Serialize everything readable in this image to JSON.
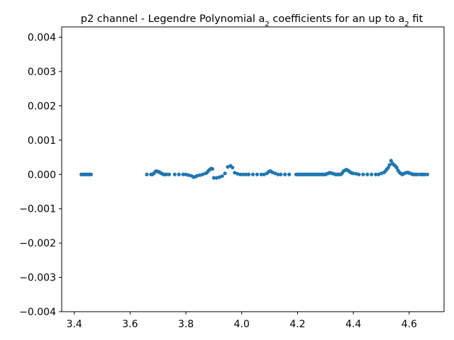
{
  "chart_data": {
    "type": "scatter",
    "title": "p2 channel - Legendre Polynomial a",
    "title_sub1": "2",
    "title_mid": " coefficients for an up to a",
    "title_sub2": "2",
    "title_end": " fit",
    "xlabel": "",
    "ylabel": "",
    "xlim": [
      3.355,
      4.725
    ],
    "ylim": [
      -0.004,
      0.0043
    ],
    "x_ticks": [
      3.4,
      3.6,
      3.8,
      4.0,
      4.2,
      4.4,
      4.6
    ],
    "x_tick_labels": [
      "3.4",
      "3.6",
      "3.8",
      "4.0",
      "4.2",
      "4.4",
      "4.6"
    ],
    "y_ticks": [
      -0.004,
      -0.003,
      -0.002,
      -0.001,
      0.0,
      0.001,
      0.002,
      0.003,
      0.004
    ],
    "y_tick_labels": [
      "−0.004",
      "−0.003",
      "−0.002",
      "−0.001",
      "0.000",
      "0.001",
      "0.002",
      "0.003",
      "0.004"
    ],
    "grid": false,
    "marker_color": "#1f77b4",
    "series": [
      {
        "points": [
          [
            3.425,
            0.0
          ],
          [
            3.43,
            0.0
          ],
          [
            3.435,
            0.0
          ],
          [
            3.44,
            0.0
          ],
          [
            3.445,
            0.0
          ],
          [
            3.45,
            0.0
          ],
          [
            3.455,
            0.0
          ],
          [
            3.46,
            0.0
          ],
          [
            3.66,
            0.0
          ],
          [
            3.675,
            0.0
          ],
          [
            3.68,
            0.0
          ],
          [
            3.685,
            3e-05
          ],
          [
            3.69,
            8e-05
          ],
          [
            3.695,
            0.0001
          ],
          [
            3.7,
            8e-05
          ],
          [
            3.705,
            7e-05
          ],
          [
            3.71,
            4e-05
          ],
          [
            3.715,
            2e-05
          ],
          [
            3.72,
            0.0
          ],
          [
            3.725,
            0.0
          ],
          [
            3.73,
            0.0
          ],
          [
            3.74,
            0.0
          ],
          [
            3.76,
            0.0
          ],
          [
            3.775,
            0.0
          ],
          [
            3.79,
            0.0
          ],
          [
            3.8,
            0.0
          ],
          [
            3.81,
            -2e-05
          ],
          [
            3.82,
            -4e-05
          ],
          [
            3.828,
            -8e-05
          ],
          [
            3.835,
            -6e-05
          ],
          [
            3.84,
            -4e-05
          ],
          [
            3.85,
            -2e-05
          ],
          [
            3.86,
            0.0
          ],
          [
            3.87,
            3e-05
          ],
          [
            3.875,
            5e-05
          ],
          [
            3.88,
            0.0001
          ],
          [
            3.885,
            0.00014
          ],
          [
            3.89,
            0.00017
          ],
          [
            3.895,
            0.00016
          ],
          [
            3.9,
            -0.0001
          ],
          [
            3.91,
            -0.0001
          ],
          [
            3.92,
            -8e-05
          ],
          [
            3.93,
            -5e-05
          ],
          [
            3.94,
            3e-05
          ],
          [
            3.95,
            0.00022
          ],
          [
            3.96,
            0.00025
          ],
          [
            3.967,
            0.0002
          ],
          [
            3.975,
            5e-05
          ],
          [
            3.985,
            2e-05
          ],
          [
            3.995,
            0.0
          ],
          [
            4.005,
            0.0
          ],
          [
            4.015,
            0.0
          ],
          [
            4.025,
            0.0
          ],
          [
            4.04,
            0.0
          ],
          [
            4.055,
            0.0
          ],
          [
            4.07,
            0.0
          ],
          [
            4.08,
            0.0
          ],
          [
            4.09,
            3e-05
          ],
          [
            4.097,
            8e-05
          ],
          [
            4.103,
            0.0001
          ],
          [
            4.11,
            6e-05
          ],
          [
            4.12,
            3e-05
          ],
          [
            4.13,
            0.0
          ],
          [
            4.14,
            0.0
          ],
          [
            4.155,
            0.0
          ],
          [
            4.17,
            0.0
          ],
          [
            4.195,
            0.0
          ],
          [
            4.2,
            0.0
          ],
          [
            4.205,
            0.0
          ],
          [
            4.21,
            0.0
          ],
          [
            4.215,
            0.0
          ],
          [
            4.22,
            0.0
          ],
          [
            4.225,
            0.0
          ],
          [
            4.23,
            0.0
          ],
          [
            4.235,
            0.0
          ],
          [
            4.24,
            0.0
          ],
          [
            4.245,
            0.0
          ],
          [
            4.25,
            0.0
          ],
          [
            4.255,
            0.0
          ],
          [
            4.26,
            0.0
          ],
          [
            4.265,
            0.0
          ],
          [
            4.27,
            0.0
          ],
          [
            4.275,
            0.0
          ],
          [
            4.28,
            0.0
          ],
          [
            4.285,
            0.0
          ],
          [
            4.29,
            0.0
          ],
          [
            4.295,
            0.0
          ],
          [
            4.3,
            0.0
          ],
          [
            4.305,
            2e-05
          ],
          [
            4.31,
            3e-05
          ],
          [
            4.315,
            5e-05
          ],
          [
            4.32,
            4e-05
          ],
          [
            4.325,
            3e-05
          ],
          [
            4.33,
            2e-05
          ],
          [
            4.335,
            0.0
          ],
          [
            4.34,
            0.0
          ],
          [
            4.345,
            0.0
          ],
          [
            4.35,
            0.0
          ],
          [
            4.355,
            0.0
          ],
          [
            4.36,
            4e-05
          ],
          [
            4.365,
            0.0001
          ],
          [
            4.37,
            0.00012
          ],
          [
            4.375,
            0.00014
          ],
          [
            4.38,
            0.00012
          ],
          [
            4.385,
            9e-05
          ],
          [
            4.39,
            6e-05
          ],
          [
            4.395,
            4e-05
          ],
          [
            4.4,
            3e-05
          ],
          [
            4.41,
            2e-05
          ],
          [
            4.42,
            0.0
          ],
          [
            4.435,
            0.0
          ],
          [
            4.45,
            0.0
          ],
          [
            4.465,
            0.0
          ],
          [
            4.48,
            0.0
          ],
          [
            4.49,
            0.0
          ],
          [
            4.5,
            3e-05
          ],
          [
            4.51,
            6e-05
          ],
          [
            4.515,
            0.0001
          ],
          [
            4.52,
            0.00015
          ],
          [
            4.525,
            0.0002
          ],
          [
            4.53,
            0.00028
          ],
          [
            4.535,
            0.0004
          ],
          [
            4.54,
            0.00032
          ],
          [
            4.545,
            0.00028
          ],
          [
            4.55,
            0.00025
          ],
          [
            4.555,
            0.0002
          ],
          [
            4.56,
            0.00012
          ],
          [
            4.565,
            6e-05
          ],
          [
            4.57,
            3e-05
          ],
          [
            4.575,
            0.0
          ],
          [
            4.58,
            2e-05
          ],
          [
            4.585,
            4e-05
          ],
          [
            4.59,
            5e-05
          ],
          [
            4.595,
            6e-05
          ],
          [
            4.6,
            4e-05
          ],
          [
            4.605,
            3e-05
          ],
          [
            4.61,
            1e-05
          ],
          [
            4.615,
            0.0
          ],
          [
            4.62,
            0.0
          ],
          [
            4.625,
            0.0
          ],
          [
            4.63,
            0.0
          ],
          [
            4.64,
            0.0
          ],
          [
            4.645,
            0.0
          ],
          [
            4.65,
            0.0
          ],
          [
            4.655,
            0.0
          ],
          [
            4.665,
            0.0
          ]
        ]
      }
    ]
  }
}
